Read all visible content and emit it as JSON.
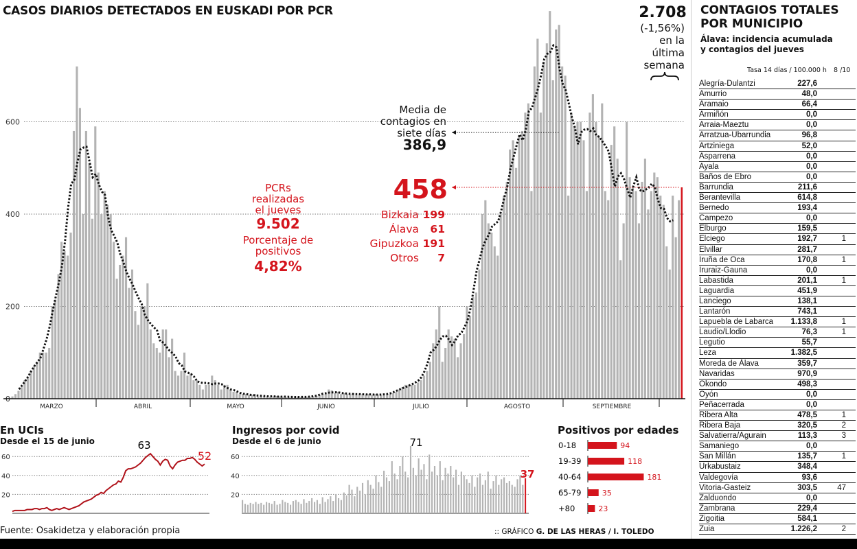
{
  "title": "CASOS DIARIOS DETECTADOS EN EUSKADI POR PCR",
  "weekly": {
    "total": "2.708",
    "change": "(-1,56%)",
    "line1": "en la",
    "line2": "última",
    "line3": "semana"
  },
  "average": {
    "l1": "Media de",
    "l2": "contagios en",
    "l3": "siete días",
    "value": "386,9"
  },
  "today": {
    "value": "458",
    "regions": [
      {
        "name": "Bizkaia",
        "value": "199"
      },
      {
        "name": "Álava",
        "value": "61"
      },
      {
        "name": "Gipuzkoa",
        "value": "191"
      },
      {
        "name": "Otros",
        "value": "7"
      }
    ]
  },
  "pcr": {
    "l1": "PCRs",
    "l2": "realizadas",
    "l3": "el jueves",
    "value": "9.502",
    "p1": "Porcentaje de",
    "p2": "positivos",
    "pvalue": "4,82%"
  },
  "colors": {
    "bars": "#b3b3b3",
    "highlight": "#d4141c",
    "average": "#111111"
  },
  "chart_data": [
    {
      "type": "bar",
      "title": "CASOS DIARIOS DETECTADOS EN EUSKADI POR PCR",
      "yticks": [
        "0",
        "200",
        "400",
        "600"
      ],
      "ylim": [
        0,
        850
      ],
      "grid": true,
      "months": [
        "MARZO",
        "ABRIL",
        "MAYO",
        "JUNIO",
        "JULIO",
        "AGOSTO",
        "SEPTIEMBRE"
      ],
      "overlay": "media de siete días (línea punteada)",
      "values": [
        2,
        5,
        10,
        17,
        25,
        40,
        45,
        60,
        70,
        80,
        100,
        100,
        100,
        110,
        200,
        215,
        270,
        340,
        320,
        310,
        360,
        580,
        720,
        630,
        400,
        580,
        510,
        390,
        590,
        490,
        400,
        450,
        420,
        400,
        340,
        260,
        290,
        310,
        350,
        240,
        280,
        190,
        160,
        200,
        200,
        250,
        150,
        120,
        110,
        100,
        150,
        150,
        90,
        130,
        60,
        50,
        60,
        100,
        50,
        55,
        40,
        40,
        30,
        20,
        30,
        30,
        50,
        40,
        30,
        20,
        30,
        30,
        20,
        15,
        15,
        10,
        10,
        10,
        8,
        8,
        10,
        5,
        5,
        6,
        5,
        4,
        5,
        6,
        5,
        4,
        3,
        3,
        5,
        5,
        4,
        3,
        3,
        3,
        4,
        5,
        6,
        8,
        10,
        10,
        20,
        18,
        12,
        15,
        10,
        12,
        10,
        10,
        12,
        8,
        10,
        10,
        9,
        10,
        8,
        10,
        9,
        8,
        8,
        10,
        10,
        12,
        15,
        20,
        25,
        30,
        30,
        30,
        30,
        35,
        40,
        50,
        60,
        80,
        120,
        150,
        200,
        80,
        110,
        150,
        135,
        130,
        90,
        120,
        140,
        200,
        180,
        220,
        230,
        280,
        400,
        430,
        380,
        360,
        330,
        310,
        400,
        440,
        470,
        540,
        560,
        500,
        570,
        580,
        620,
        640,
        450,
        720,
        780,
        620,
        730,
        770,
        840,
        690,
        800,
        810,
        720,
        700,
        440,
        620,
        590,
        600,
        600,
        560,
        450,
        620,
        660,
        600,
        570,
        640,
        450,
        430,
        550,
        590,
        520,
        300,
        380,
        600,
        480,
        460,
        450,
        380,
        470,
        520,
        410,
        450,
        490,
        480,
        440,
        420,
        330,
        280,
        440,
        350,
        430,
        458
      ]
    },
    {
      "type": "line",
      "title": "En UCIs",
      "subtitle": "Desde el 15 de junio",
      "yticks": [
        "20",
        "40",
        "60"
      ],
      "ylim": [
        0,
        65
      ],
      "max_label": "63",
      "last_label": "52",
      "values": [
        2,
        3,
        3,
        3,
        3,
        3,
        4,
        4,
        4,
        5,
        5,
        4,
        5,
        5,
        6,
        4,
        3,
        4,
        5,
        4,
        5,
        6,
        5,
        4,
        5,
        6,
        7,
        8,
        10,
        12,
        13,
        14,
        15,
        17,
        19,
        20,
        22,
        21,
        24,
        26,
        28,
        30,
        31,
        34,
        33,
        38,
        45,
        47,
        47,
        48,
        49,
        51,
        53,
        56,
        59,
        61,
        63,
        60,
        57,
        55,
        51,
        55,
        57,
        56,
        50,
        47,
        51,
        54,
        55,
        56,
        56,
        58,
        58,
        59,
        57,
        54,
        52,
        50,
        52
      ]
    },
    {
      "type": "bar",
      "title": "Ingresos por covid",
      "subtitle": "Desde el 6 de junio",
      "yticks": [
        "20",
        "40",
        "60"
      ],
      "ylim": [
        0,
        75
      ],
      "max_label": "71",
      "last_label": "37",
      "values": [
        14,
        10,
        9,
        11,
        10,
        12,
        10,
        11,
        9,
        12,
        11,
        10,
        13,
        9,
        10,
        14,
        12,
        11,
        9,
        13,
        14,
        12,
        10,
        15,
        11,
        13,
        16,
        12,
        14,
        10,
        17,
        12,
        15,
        18,
        13,
        20,
        16,
        14,
        22,
        19,
        30,
        25,
        18,
        28,
        24,
        32,
        20,
        35,
        30,
        26,
        40,
        33,
        28,
        45,
        38,
        34,
        55,
        42,
        36,
        50,
        60,
        44,
        38,
        71,
        48,
        40,
        58,
        46,
        52,
        36,
        62,
        44,
        50,
        40,
        55,
        35,
        48,
        42,
        50,
        38,
        46,
        30,
        44,
        40,
        36,
        32,
        40,
        28,
        38,
        42,
        30,
        35,
        44,
        26,
        34,
        40,
        30,
        36,
        38,
        32,
        34,
        30,
        28,
        36,
        40,
        30,
        37
      ]
    },
    {
      "type": "bar",
      "orientation": "horizontal",
      "title": "Positivos por edades",
      "categories": [
        "0-18",
        "19-39",
        "40-64",
        "65-79",
        "+80"
      ],
      "values": [
        94,
        118,
        181,
        35,
        23
      ]
    }
  ],
  "municipalities": {
    "title1": "CONTAGIOS TOTALES",
    "title2": "POR MUNICIPIO",
    "sub1": "Álava: incidencia acumulada",
    "sub2": "y contagios del jueves",
    "col1": "Tasa 14 días / 100.000 h",
    "col2": "8 /10",
    "rows": [
      [
        "Alegría-Dulantzi",
        "227,6",
        ""
      ],
      [
        "Amurrio",
        "48,0",
        ""
      ],
      [
        "Aramaio",
        "66,4",
        ""
      ],
      [
        "Armiñón",
        "0,0",
        ""
      ],
      [
        "Arraia-Maeztu",
        "0,0",
        ""
      ],
      [
        "Arratzua-Ubarrundia",
        "96,8",
        ""
      ],
      [
        "Artziniega",
        "52,0",
        ""
      ],
      [
        "Asparrena",
        "0,0",
        ""
      ],
      [
        "Ayala",
        "0,0",
        ""
      ],
      [
        "Baños de Ebro",
        "0,0",
        ""
      ],
      [
        "Barrundia",
        "211,6",
        ""
      ],
      [
        "Berantevilla",
        "614,8",
        ""
      ],
      [
        "Bernedo",
        "193,4",
        ""
      ],
      [
        "Campezo",
        "0,0",
        ""
      ],
      [
        "Elburgo",
        "159,5",
        ""
      ],
      [
        "Elciego",
        "192,7",
        "1"
      ],
      [
        "Elvillar",
        "281,7",
        ""
      ],
      [
        "Iruña de Oca",
        "170,8",
        "1"
      ],
      [
        "Iruraiz-Gauna",
        "0,0",
        ""
      ],
      [
        "Labastida",
        "201,1",
        "1"
      ],
      [
        "Laguardia",
        "451,9",
        ""
      ],
      [
        "Lanciego",
        "138,1",
        ""
      ],
      [
        "Lantarón",
        "743,1",
        ""
      ],
      [
        "Lapuebla de Labarca",
        "1.133,8",
        "1"
      ],
      [
        "Laudio/Llodio",
        "76,3",
        "1"
      ],
      [
        "Legutio",
        "55,7",
        ""
      ],
      [
        "Leza",
        "1.382,5",
        ""
      ],
      [
        "Moreda de Álava",
        "359,7",
        ""
      ],
      [
        "Navaridas",
        "970,9",
        ""
      ],
      [
        "Okondo",
        "498,3",
        ""
      ],
      [
        "Oyón",
        "0,0",
        ""
      ],
      [
        "Peñacerrada",
        "0,0",
        ""
      ],
      [
        "Ribera Alta",
        "478,5",
        "1"
      ],
      [
        "Ribera Baja",
        "320,5",
        "2"
      ],
      [
        "Salvatierra/Agurain",
        "113,3",
        "3"
      ],
      [
        "Samaniego",
        "0,0",
        ""
      ],
      [
        "San Millán",
        "135,7",
        "1"
      ],
      [
        "Urkabustaiz",
        "348,4",
        ""
      ],
      [
        "Valdegovía",
        "93,6",
        ""
      ],
      [
        "Vitoria-Gasteiz",
        "303,5",
        "47"
      ],
      [
        "Zalduondo",
        "0,0",
        ""
      ],
      [
        "Zambrana",
        "229,4",
        ""
      ],
      [
        "Zigoitia",
        "584,1",
        ""
      ],
      [
        "Zuia",
        "1.226,2",
        "2"
      ]
    ]
  },
  "source": "Fuente: Osakidetza y elaboración propia",
  "credit": {
    "prefix": ":: GRÁFICO",
    "authors": "G. DE LAS HERAS / I. TOLEDO"
  }
}
